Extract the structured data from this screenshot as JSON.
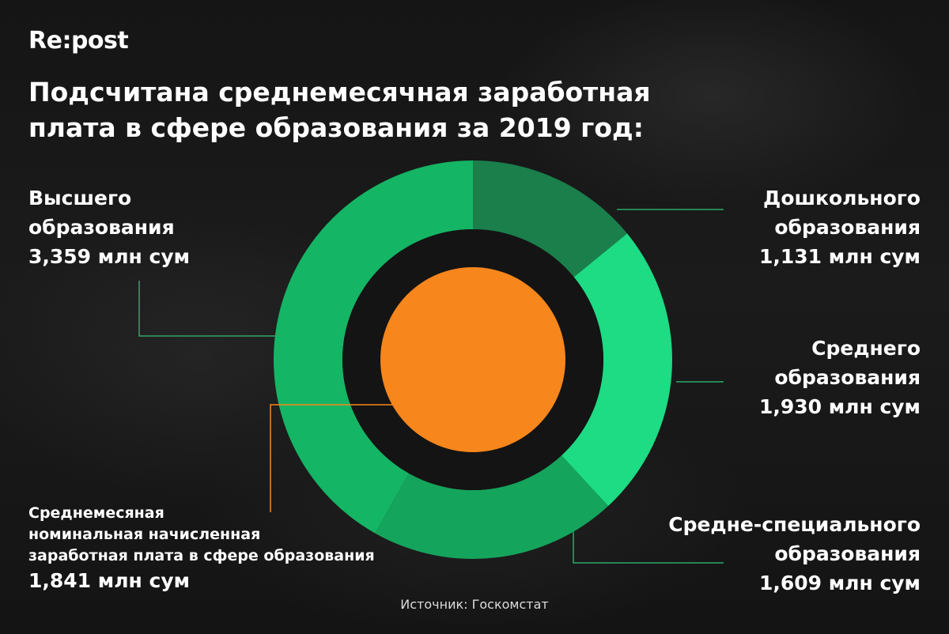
{
  "logo": "Re:post",
  "title_lines": [
    "Подсчитана среднемесячная заработная",
    "плата в сфере образования за 2019 год:"
  ],
  "colors": {
    "preschool": "#1a7f4b",
    "general": "#1ddc83",
    "special": "#15a45c",
    "higher": "#14b564",
    "average": "#f7861c",
    "leader": "#2ea86a"
  },
  "labels": {
    "higher": {
      "lines": [
        "Высшего",
        "образования"
      ],
      "value": "3,359 млн сум"
    },
    "preschool": {
      "lines": [
        "Дошкольного",
        "образования"
      ],
      "value": "1,131 млн сум"
    },
    "general": {
      "lines": [
        "Среднего",
        "образования"
      ],
      "value": "1,930 млн сум"
    },
    "special": {
      "lines": [
        "Средне-специального",
        "образования"
      ],
      "value": "1,609 млн сум"
    },
    "average": {
      "lines": [
        "Среднемесяная",
        "номинальная начисленная",
        "заработная плата в сфере образования"
      ],
      "value": "1,841 млн сум"
    }
  },
  "chart_data": {
    "type": "donut",
    "unit": "млн сум",
    "categories": [
      "Дошкольного образования",
      "Среднего образования",
      "Средне-специального образования",
      "Высшего образования"
    ],
    "values": [
      1.131,
      1.93,
      1.609,
      3.359
    ],
    "center_value": {
      "label": "Среднемесяная номинальная начисленная заработная плата в сфере образования",
      "value": 1.841
    }
  },
  "source": "Источник: Госкомстат"
}
